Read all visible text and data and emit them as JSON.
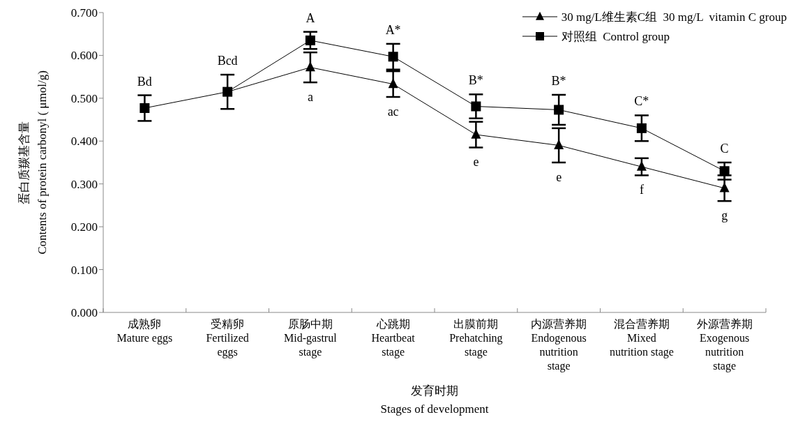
{
  "chart_data": {
    "type": "line",
    "xlabel": "发育时期\nStages of development",
    "ylabel": "蛋白质羰基含量\nContents of protein carbonyl ( μmol/g)",
    "categories": [
      "成熟卵\nMature eggs",
      "受精卵\nFertilized\neggs",
      "原肠中期\nMid-gastrul\nstage",
      "心跳期\nHeartbeat\nstage",
      "出膜前期\nPrehatching\nstage",
      "内源营养期\nEndogenous\nnutrition\nstage",
      "混合营养期\nMixed\nnutrition stage",
      "外源营养期\nExogenous\nnutrition\nstage"
    ],
    "series": [
      {
        "name": "30 mg/L维生素C组  30 mg/L  vitamin C group",
        "color": "#000000",
        "marker": "triangle",
        "values": [
          null,
          0.515,
          0.572,
          0.533,
          0.415,
          0.39,
          0.34,
          0.29
        ],
        "errors": [
          null,
          null,
          0.035,
          0.03,
          0.03,
          0.04,
          0.02,
          0.03
        ],
        "value_labels": [
          null,
          null,
          "a",
          "ac",
          "e",
          "e",
          "f",
          "g"
        ]
      },
      {
        "name": "对照组  Control group",
        "color": "#000000",
        "marker": "square",
        "values": [
          0.477,
          0.515,
          0.635,
          0.597,
          0.481,
          0.473,
          0.43,
          0.33
        ],
        "errors": [
          0.03,
          0.04,
          0.02,
          0.03,
          0.028,
          0.035,
          0.03,
          0.02
        ],
        "value_labels": [
          "Bd",
          "Bcd",
          "A",
          "A*",
          "B*",
          "B*",
          "C*",
          "C"
        ]
      }
    ],
    "ylim": [
      0,
      0.7
    ],
    "yticks": [
      {
        "value": 0,
        "label": "0.000"
      },
      {
        "value": 0.1,
        "label": "0.100"
      },
      {
        "value": 0.2,
        "label": "0.200"
      },
      {
        "value": 0.3,
        "label": "0.300"
      },
      {
        "value": 0.4,
        "label": "0.400"
      },
      {
        "value": 0.5,
        "label": "0.500"
      },
      {
        "value": 0.6,
        "label": "0.600"
      },
      {
        "value": 0.7,
        "label": "0.700"
      }
    ],
    "grid": false,
    "legend": "top right",
    "line_style": "solid"
  }
}
